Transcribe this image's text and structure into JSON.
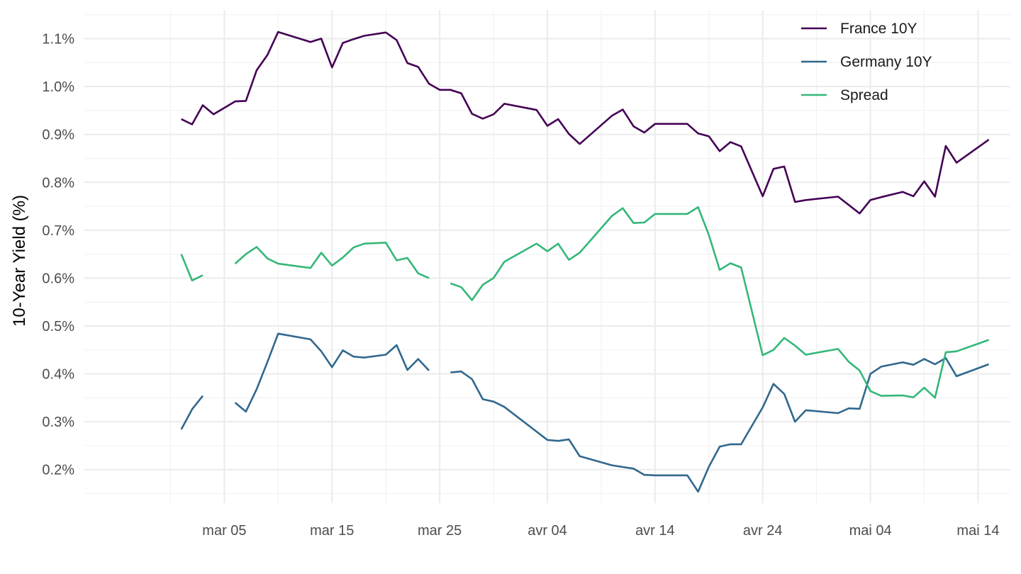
{
  "chart_data": {
    "type": "line",
    "title": "",
    "xlabel": "",
    "ylabel": "10-Year Yield (%)",
    "y_tick_labels": [
      "0.2%",
      "0.3%",
      "0.4%",
      "0.5%",
      "0.6%",
      "0.7%",
      "0.8%",
      "0.9%",
      "1.0%",
      "1.1%"
    ],
    "y_ticks": [
      0.2,
      0.3,
      0.4,
      0.5,
      0.6,
      0.7,
      0.8,
      0.9,
      1.0,
      1.1
    ],
    "ylim": [
      0.13,
      1.16
    ],
    "x_tick_labels": [
      "mar 05",
      "mar 15",
      "mar 25",
      "avr 04",
      "avr 14",
      "avr 24",
      "mai 04",
      "mai 14"
    ],
    "x_ticks": [
      "2020-03-05",
      "2020-03-15",
      "2020-03-25",
      "2020-04-04",
      "2020-04-14",
      "2020-04-24",
      "2020-05-04",
      "2020-05-14"
    ],
    "xlim": [
      "2020-02-21",
      "2020-05-17"
    ],
    "grid": true,
    "legend_position": "top-right",
    "series": [
      {
        "name": "France 10Y",
        "color": "#440154",
        "points": [
          [
            "2020-03-01",
            0.932
          ],
          [
            "2020-03-02",
            0.921
          ],
          [
            "2020-03-03",
            0.961
          ],
          [
            "2020-03-04",
            0.942
          ],
          [
            "2020-03-06",
            0.969
          ],
          [
            "2020-03-07",
            0.97
          ],
          [
            "2020-03-08",
            1.034
          ],
          [
            "2020-03-09",
            1.066
          ],
          [
            "2020-03-10",
            1.114
          ],
          [
            "2020-03-13",
            1.093
          ],
          [
            "2020-03-14",
            1.1
          ],
          [
            "2020-03-15",
            1.04
          ],
          [
            "2020-03-16",
            1.091
          ],
          [
            "2020-03-17",
            1.099
          ],
          [
            "2020-03-18",
            1.106
          ],
          [
            "2020-03-20",
            1.113
          ],
          [
            "2020-03-21",
            1.097
          ],
          [
            "2020-03-22",
            1.049
          ],
          [
            "2020-03-23",
            1.041
          ],
          [
            "2020-03-24",
            1.006
          ],
          [
            "2020-03-25",
            0.993
          ],
          [
            "2020-03-26",
            0.993
          ],
          [
            "2020-03-27",
            0.986
          ],
          [
            "2020-03-28",
            0.943
          ],
          [
            "2020-03-29",
            0.933
          ],
          [
            "2020-03-30",
            0.942
          ],
          [
            "2020-03-31",
            0.964
          ],
          [
            "2020-04-03",
            0.951
          ],
          [
            "2020-04-04",
            0.918
          ],
          [
            "2020-04-05",
            0.932
          ],
          [
            "2020-04-06",
            0.901
          ],
          [
            "2020-04-07",
            0.88
          ],
          [
            "2020-04-10",
            0.939
          ],
          [
            "2020-04-11",
            0.952
          ],
          [
            "2020-04-12",
            0.917
          ],
          [
            "2020-04-13",
            0.904
          ],
          [
            "2020-04-14",
            0.922
          ],
          [
            "2020-04-17",
            0.922
          ],
          [
            "2020-04-18",
            0.902
          ],
          [
            "2020-04-19",
            0.896
          ],
          [
            "2020-04-20",
            0.865
          ],
          [
            "2020-04-21",
            0.884
          ],
          [
            "2020-04-22",
            0.875
          ],
          [
            "2020-04-24",
            0.771
          ],
          [
            "2020-04-25",
            0.828
          ],
          [
            "2020-04-26",
            0.833
          ],
          [
            "2020-04-27",
            0.759
          ],
          [
            "2020-04-28",
            0.763
          ],
          [
            "2020-05-01",
            0.77
          ],
          [
            "2020-05-03",
            0.735
          ],
          [
            "2020-05-04",
            0.763
          ],
          [
            "2020-05-05",
            0.769
          ],
          [
            "2020-05-07",
            0.78
          ],
          [
            "2020-05-08",
            0.771
          ],
          [
            "2020-05-09",
            0.802
          ],
          [
            "2020-05-10",
            0.77
          ],
          [
            "2020-05-11",
            0.876
          ],
          [
            "2020-05-12",
            0.841
          ],
          [
            "2020-05-15",
            0.889
          ]
        ]
      },
      {
        "name": "Germany 10Y",
        "color": "#31688E",
        "points": [
          [
            "2020-03-01",
            0.284
          ],
          [
            "2020-03-02",
            0.326
          ],
          [
            "2020-03-03",
            0.354
          ],
          null,
          [
            "2020-03-06",
            0.34
          ],
          [
            "2020-03-07",
            0.321
          ],
          [
            "2020-03-08",
            0.368
          ],
          [
            "2020-03-09",
            0.425
          ],
          [
            "2020-03-10",
            0.484
          ],
          [
            "2020-03-13",
            0.472
          ],
          [
            "2020-03-14",
            0.447
          ],
          [
            "2020-03-15",
            0.414
          ],
          [
            "2020-03-16",
            0.449
          ],
          [
            "2020-03-17",
            0.436
          ],
          [
            "2020-03-18",
            0.434
          ],
          [
            "2020-03-20",
            0.44
          ],
          [
            "2020-03-21",
            0.46
          ],
          [
            "2020-03-22",
            0.408
          ],
          [
            "2020-03-23",
            0.431
          ],
          [
            "2020-03-24",
            0.407
          ],
          null,
          [
            "2020-03-26",
            0.403
          ],
          [
            "2020-03-27",
            0.405
          ],
          [
            "2020-03-28",
            0.389
          ],
          [
            "2020-03-29",
            0.347
          ],
          [
            "2020-03-30",
            0.342
          ],
          [
            "2020-03-31",
            0.331
          ],
          [
            "2020-04-04",
            0.262
          ],
          [
            "2020-04-05",
            0.26
          ],
          [
            "2020-04-06",
            0.263
          ],
          [
            "2020-04-07",
            0.228
          ],
          [
            "2020-04-10",
            0.209
          ],
          [
            "2020-04-12",
            0.202
          ],
          [
            "2020-04-13",
            0.189
          ],
          [
            "2020-04-14",
            0.188
          ],
          [
            "2020-04-17",
            0.188
          ],
          [
            "2020-04-18",
            0.154
          ],
          [
            "2020-04-19",
            0.206
          ],
          [
            "2020-04-20",
            0.248
          ],
          [
            "2020-04-21",
            0.253
          ],
          [
            "2020-04-22",
            0.253
          ],
          [
            "2020-04-24",
            0.33
          ],
          [
            "2020-04-25",
            0.379
          ],
          [
            "2020-04-26",
            0.358
          ],
          [
            "2020-04-27",
            0.3
          ],
          [
            "2020-04-28",
            0.324
          ],
          [
            "2020-05-01",
            0.318
          ],
          [
            "2020-05-02",
            0.328
          ],
          [
            "2020-05-03",
            0.327
          ],
          [
            "2020-05-04",
            0.4
          ],
          [
            "2020-05-05",
            0.415
          ],
          [
            "2020-05-07",
            0.424
          ],
          [
            "2020-05-08",
            0.419
          ],
          [
            "2020-05-09",
            0.431
          ],
          [
            "2020-05-10",
            0.42
          ],
          [
            "2020-05-11",
            0.433
          ],
          [
            "2020-05-12",
            0.395
          ],
          [
            "2020-05-15",
            0.42
          ]
        ]
      },
      {
        "name": "Spread",
        "color": "#35B779",
        "points": [
          [
            "2020-03-01",
            0.65
          ],
          [
            "2020-03-02",
            0.595
          ],
          [
            "2020-03-03",
            0.606
          ],
          null,
          [
            "2020-03-06",
            0.63
          ],
          [
            "2020-03-07",
            0.65
          ],
          [
            "2020-03-08",
            0.665
          ],
          [
            "2020-03-09",
            0.641
          ],
          [
            "2020-03-10",
            0.63
          ],
          [
            "2020-03-13",
            0.621
          ],
          [
            "2020-03-14",
            0.653
          ],
          [
            "2020-03-15",
            0.626
          ],
          [
            "2020-03-16",
            0.643
          ],
          [
            "2020-03-17",
            0.664
          ],
          [
            "2020-03-18",
            0.672
          ],
          [
            "2020-03-20",
            0.674
          ],
          [
            "2020-03-21",
            0.637
          ],
          [
            "2020-03-22",
            0.642
          ],
          [
            "2020-03-23",
            0.61
          ],
          [
            "2020-03-24",
            0.6
          ],
          null,
          [
            "2020-03-26",
            0.589
          ],
          [
            "2020-03-27",
            0.581
          ],
          [
            "2020-03-28",
            0.554
          ],
          [
            "2020-03-29",
            0.586
          ],
          [
            "2020-03-30",
            0.6
          ],
          [
            "2020-03-31",
            0.634
          ],
          [
            "2020-04-03",
            0.672
          ],
          [
            "2020-04-04",
            0.656
          ],
          [
            "2020-04-05",
            0.672
          ],
          [
            "2020-04-06",
            0.638
          ],
          [
            "2020-04-07",
            0.653
          ],
          [
            "2020-04-10",
            0.73
          ],
          [
            "2020-04-11",
            0.746
          ],
          [
            "2020-04-12",
            0.715
          ],
          [
            "2020-04-13",
            0.716
          ],
          [
            "2020-04-14",
            0.734
          ],
          [
            "2020-04-17",
            0.734
          ],
          [
            "2020-04-18",
            0.748
          ],
          [
            "2020-04-19",
            0.69
          ],
          [
            "2020-04-20",
            0.617
          ],
          [
            "2020-04-21",
            0.631
          ],
          [
            "2020-04-22",
            0.622
          ],
          [
            "2020-04-24",
            0.439
          ],
          [
            "2020-04-25",
            0.45
          ],
          [
            "2020-04-26",
            0.475
          ],
          [
            "2020-04-27",
            0.459
          ],
          [
            "2020-04-28",
            0.44
          ],
          [
            "2020-05-01",
            0.452
          ],
          [
            "2020-05-02",
            0.425
          ],
          [
            "2020-05-03",
            0.407
          ],
          [
            "2020-05-04",
            0.364
          ],
          [
            "2020-05-05",
            0.354
          ],
          [
            "2020-05-07",
            0.355
          ],
          [
            "2020-05-08",
            0.351
          ],
          [
            "2020-05-09",
            0.371
          ],
          [
            "2020-05-10",
            0.35
          ],
          [
            "2020-05-11",
            0.445
          ],
          [
            "2020-05-12",
            0.447
          ],
          [
            "2020-05-15",
            0.471
          ]
        ]
      }
    ]
  }
}
